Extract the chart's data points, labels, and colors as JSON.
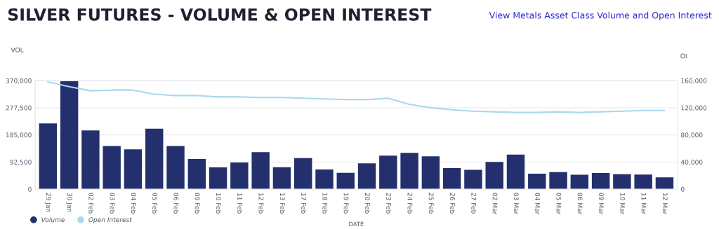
{
  "chart_data": {
    "type": "bar",
    "title": "SILVER FUTURES - VOLUME & OPEN INTEREST",
    "annotations": [
      "View Metals Asset Class Volume and Open Interest"
    ],
    "xlabel": "DATE",
    "ylabel": "VOL",
    "y2label": "OI",
    "categories": [
      "29 Jan",
      "30 Jan",
      "02 Feb",
      "03 Feb",
      "04 Feb",
      "05 Feb",
      "06 Feb",
      "09 Feb",
      "10 Feb",
      "11 Feb",
      "12 Feb",
      "13 Feb",
      "17 Feb",
      "18 Feb",
      "19 Feb",
      "20 Feb",
      "23 Feb",
      "24 Feb",
      "25 Feb",
      "26 Feb",
      "27 Feb",
      "02 Mar",
      "03 Mar",
      "04 Mar",
      "05 Mar",
      "06 Mar",
      "09 Mar",
      "10 Mar",
      "11 Mar",
      "12 Mar"
    ],
    "series": [
      {
        "name": "Volume",
        "color": "#24306e",
        "values": [
          224000,
          368000,
          200000,
          147000,
          136000,
          206000,
          147000,
          103000,
          74000,
          91000,
          126000,
          75000,
          106000,
          67000,
          56000,
          88000,
          114000,
          124000,
          112000,
          72000,
          66000,
          93000,
          118000,
          53000,
          58000,
          49000,
          55000,
          51000,
          50000,
          40000
        ]
      },
      {
        "name": "Open Interest",
        "type": "line",
        "axis": "y2",
        "color": "#a8d8ee",
        "values": [
          158000,
          151000,
          145000,
          146000,
          146000,
          140000,
          138000,
          138000,
          136000,
          136000,
          135000,
          135000,
          134000,
          133000,
          132000,
          132000,
          134000,
          125000,
          120000,
          117000,
          115000,
          114000,
          113000,
          113000,
          114000,
          113000,
          114000,
          115000,
          116000,
          116000
        ]
      }
    ],
    "ylim": [
      0,
      370000
    ],
    "yticks": [
      {
        "value": 0,
        "label": "0"
      },
      {
        "value": 92500,
        "label": "92,500"
      },
      {
        "value": 185000,
        "label": "185,000"
      },
      {
        "value": 277500,
        "label": "277,500"
      },
      {
        "value": 370000,
        "label": "370,000"
      }
    ],
    "y2lim": [
      0,
      160000
    ],
    "y2ticks": [
      {
        "value": 0,
        "label": "0"
      },
      {
        "value": 40000,
        "label": "40,000"
      },
      {
        "value": 80000,
        "label": "80,000"
      },
      {
        "value": 120000,
        "label": "120,000"
      },
      {
        "value": 160000,
        "label": "160,000"
      }
    ],
    "grid": "y",
    "legend": "bottom left",
    "marker": "none",
    "line_style": "solid"
  }
}
